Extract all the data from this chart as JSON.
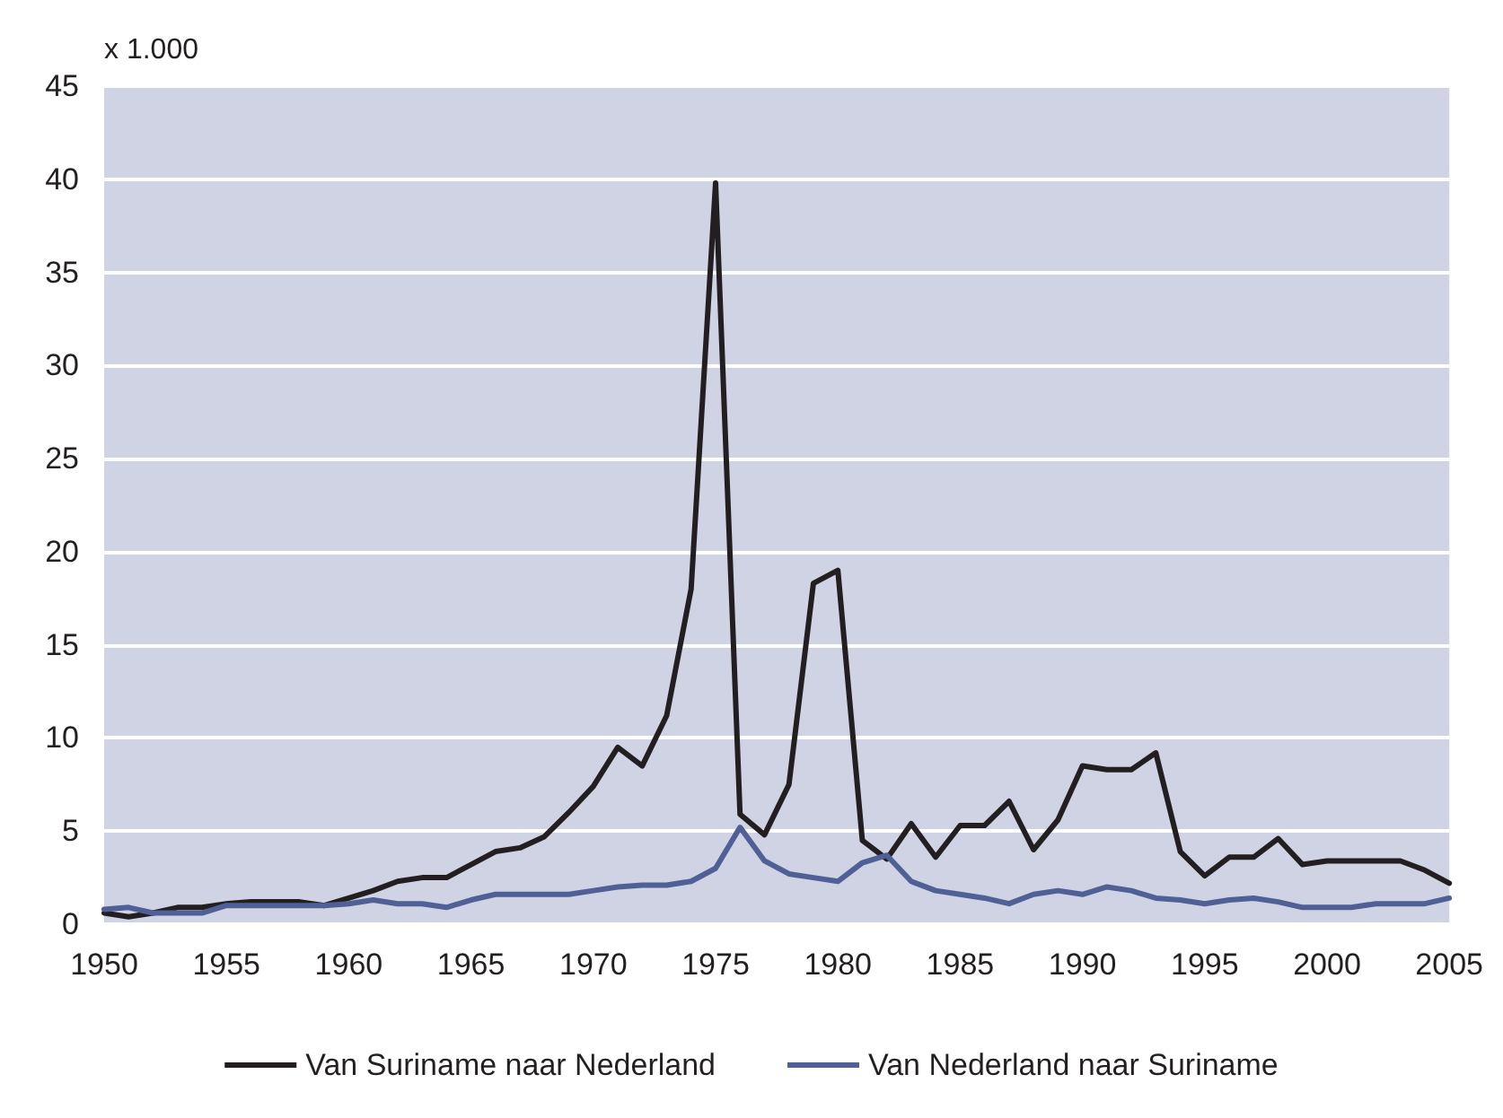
{
  "chart_data": {
    "type": "line",
    "ylabel": "x 1.000",
    "x": [
      1950,
      1951,
      1952,
      1953,
      1954,
      1955,
      1956,
      1957,
      1958,
      1959,
      1960,
      1961,
      1962,
      1963,
      1964,
      1965,
      1966,
      1967,
      1968,
      1969,
      1970,
      1971,
      1972,
      1973,
      1974,
      1975,
      1976,
      1977,
      1978,
      1979,
      1980,
      1981,
      1982,
      1983,
      1984,
      1985,
      1986,
      1987,
      1988,
      1989,
      1990,
      1991,
      1992,
      1993,
      1994,
      1995,
      1996,
      1997,
      1998,
      1999,
      2000,
      2001,
      2002,
      2003,
      2004,
      2005
    ],
    "series": [
      {
        "name": "Van Suriname naar Nederland",
        "color": "#231f20",
        "values": [
          0.6,
          0.4,
          0.6,
          0.9,
          0.9,
          1.1,
          1.2,
          1.2,
          1.2,
          1.0,
          1.4,
          1.8,
          2.3,
          2.5,
          2.5,
          3.2,
          3.9,
          4.1,
          4.7,
          6.0,
          7.4,
          9.5,
          8.5,
          11.2,
          18.0,
          39.8,
          5.9,
          4.8,
          7.5,
          18.3,
          19.0,
          4.5,
          3.5,
          5.4,
          3.6,
          5.3,
          5.3,
          6.6,
          4.0,
          5.6,
          8.5,
          8.3,
          8.3,
          9.2,
          3.9,
          2.6,
          3.6,
          3.6,
          4.6,
          3.2,
          3.4,
          3.4,
          3.4,
          3.4,
          2.9,
          2.2
        ]
      },
      {
        "name": "Van Nederland naar Suriname",
        "color": "#4f6096",
        "values": [
          0.8,
          0.9,
          0.6,
          0.6,
          0.6,
          1.0,
          1.0,
          1.0,
          1.0,
          1.0,
          1.1,
          1.3,
          1.1,
          1.1,
          0.9,
          1.3,
          1.6,
          1.6,
          1.6,
          1.6,
          1.8,
          2.0,
          2.1,
          2.1,
          2.3,
          3.0,
          5.2,
          3.4,
          2.7,
          2.5,
          2.3,
          3.3,
          3.7,
          2.3,
          1.8,
          1.6,
          1.4,
          1.1,
          1.6,
          1.8,
          1.6,
          2.0,
          1.8,
          1.4,
          1.3,
          1.1,
          1.3,
          1.4,
          1.2,
          0.9,
          0.9,
          0.9,
          1.1,
          1.1,
          1.1,
          1.4
        ]
      }
    ],
    "xlim": [
      1950,
      2005
    ],
    "xticks": [
      1950,
      1955,
      1960,
      1965,
      1970,
      1975,
      1980,
      1985,
      1990,
      1995,
      2000,
      2005
    ],
    "ylim": [
      0,
      45
    ],
    "yticks": [
      0,
      5,
      10,
      15,
      20,
      25,
      30,
      35,
      40,
      45
    ],
    "grid": "y",
    "legend": "bottom",
    "marker": "none",
    "line_style": "solid"
  }
}
